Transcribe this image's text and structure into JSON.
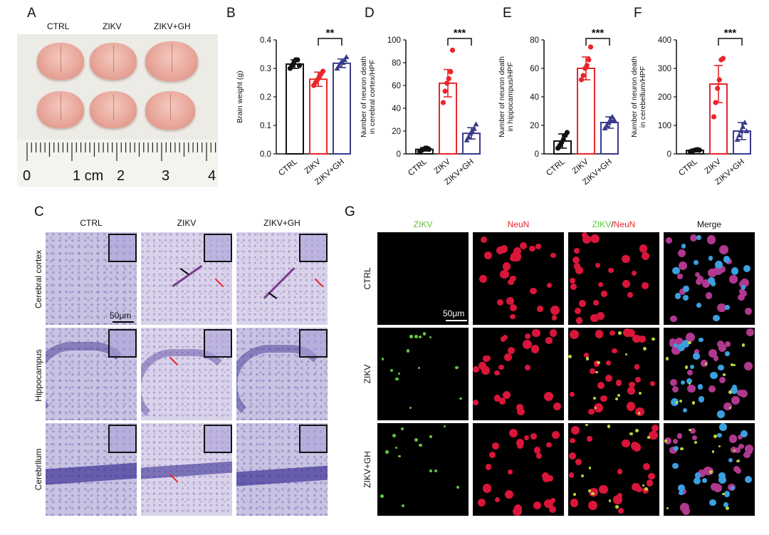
{
  "panels": {
    "A": {
      "label": "A",
      "groups": [
        "CTRL",
        "ZIKV",
        "ZIKV+GH"
      ],
      "ruler_numbers": [
        "0",
        "1 cm",
        "2",
        "3",
        "4"
      ]
    },
    "B": {
      "label": "B"
    },
    "C": {
      "label": "C",
      "columns": [
        "CTRL",
        "ZIKV",
        "ZIKV+GH"
      ],
      "rows": [
        "Cerebral cortex",
        "Hippocampus",
        "Cerebrllum"
      ],
      "scalebar": "50μm"
    },
    "D": {
      "label": "D"
    },
    "E": {
      "label": "E"
    },
    "F": {
      "label": "F"
    },
    "G": {
      "label": "G",
      "columns": [
        "ZIKV",
        "NeuN",
        "ZIKV/NeuN",
        "Merge"
      ],
      "col_zikv": "ZIKV",
      "col_slash": "/",
      "col_neun": "NeuN",
      "rows": [
        "CTRL",
        "ZIKV",
        "ZIKV+GH"
      ],
      "scalebar": "50μm"
    }
  },
  "colors": {
    "ctrl": "#111111",
    "zikv": "#e8262b",
    "zikvgh": "#3a3a8c",
    "green": "#5fc43a",
    "red": "#e8262b"
  },
  "chart_data": [
    {
      "id": "B",
      "type": "bar",
      "categories": [
        "CTRL",
        "ZIKV",
        "ZIKV+GH"
      ],
      "values": [
        0.315,
        0.262,
        0.318
      ],
      "errors": [
        0.015,
        0.025,
        0.015
      ],
      "points": [
        [
          0.3,
          0.31,
          0.32,
          0.33,
          0.33,
          0.31
        ],
        [
          0.24,
          0.25,
          0.26,
          0.27,
          0.28,
          0.29
        ],
        [
          0.3,
          0.31,
          0.32,
          0.32,
          0.33,
          0.34
        ]
      ],
      "ylabel": "Brain weight (g)",
      "ylim": [
        0,
        0.4
      ],
      "yticks": [
        "0.0",
        "0.1",
        "0.2",
        "0.3",
        "0.4"
      ],
      "significance": {
        "pair": [
          1,
          2
        ],
        "label": "**"
      }
    },
    {
      "id": "D",
      "type": "bar",
      "categories": [
        "CTRL",
        "ZIKV",
        "ZIKV+GH"
      ],
      "values": [
        4,
        62,
        18
      ],
      "errors": [
        1.5,
        12,
        5
      ],
      "points": [
        [
          2,
          3,
          4,
          5,
          5,
          4
        ],
        [
          45,
          55,
          62,
          66,
          72,
          91
        ],
        [
          12,
          15,
          18,
          20,
          22,
          26
        ]
      ],
      "ylabel": "Number of neuron death in cerebral cortex/HPF",
      "ylabel_lines": [
        "Number of neuron death",
        "in cerebral cortex/HPF"
      ],
      "ylim": [
        0,
        100
      ],
      "yticks": [
        "0",
        "20",
        "40",
        "60",
        "80",
        "100"
      ],
      "significance": {
        "pair": [
          1,
          2
        ],
        "label": "***"
      }
    },
    {
      "id": "E",
      "type": "bar",
      "categories": [
        "CTRL",
        "ZIKV",
        "ZIKV+GH"
      ],
      "values": [
        9,
        60,
        22
      ],
      "errors": [
        5,
        8,
        4
      ],
      "points": [
        [
          4,
          6,
          8,
          10,
          13,
          15
        ],
        [
          52,
          55,
          60,
          62,
          66,
          75
        ],
        [
          18,
          20,
          22,
          24,
          26,
          24
        ]
      ],
      "ylabel": "Number of neuron death in hippocampus/HPF",
      "ylabel_lines": [
        "Number of  neuron death",
        "in hippocampus/HPF"
      ],
      "ylim": [
        0,
        80
      ],
      "yticks": [
        "0",
        "20",
        "40",
        "60",
        "80"
      ],
      "significance": {
        "pair": [
          1,
          2
        ],
        "label": "***"
      }
    },
    {
      "id": "F",
      "type": "bar",
      "categories": [
        "CTRL",
        "ZIKV",
        "ZIKV+GH"
      ],
      "values": [
        12,
        245,
        80
      ],
      "errors": [
        5,
        65,
        30
      ],
      "points": [
        [
          8,
          10,
          12,
          14,
          15,
          13
        ],
        [
          130,
          180,
          230,
          260,
          330,
          335
        ],
        [
          50,
          65,
          80,
          95,
          110,
          80
        ]
      ],
      "ylabel": "Number of neuron death in cerebellum/HPF",
      "ylabel_lines": [
        "Number of  neuron death",
        "in cerebellum/HPF"
      ],
      "ylim": [
        0,
        400
      ],
      "yticks": [
        "0",
        "100",
        "200",
        "300",
        "400"
      ],
      "significance": {
        "pair": [
          1,
          2
        ],
        "label": "***"
      }
    }
  ]
}
